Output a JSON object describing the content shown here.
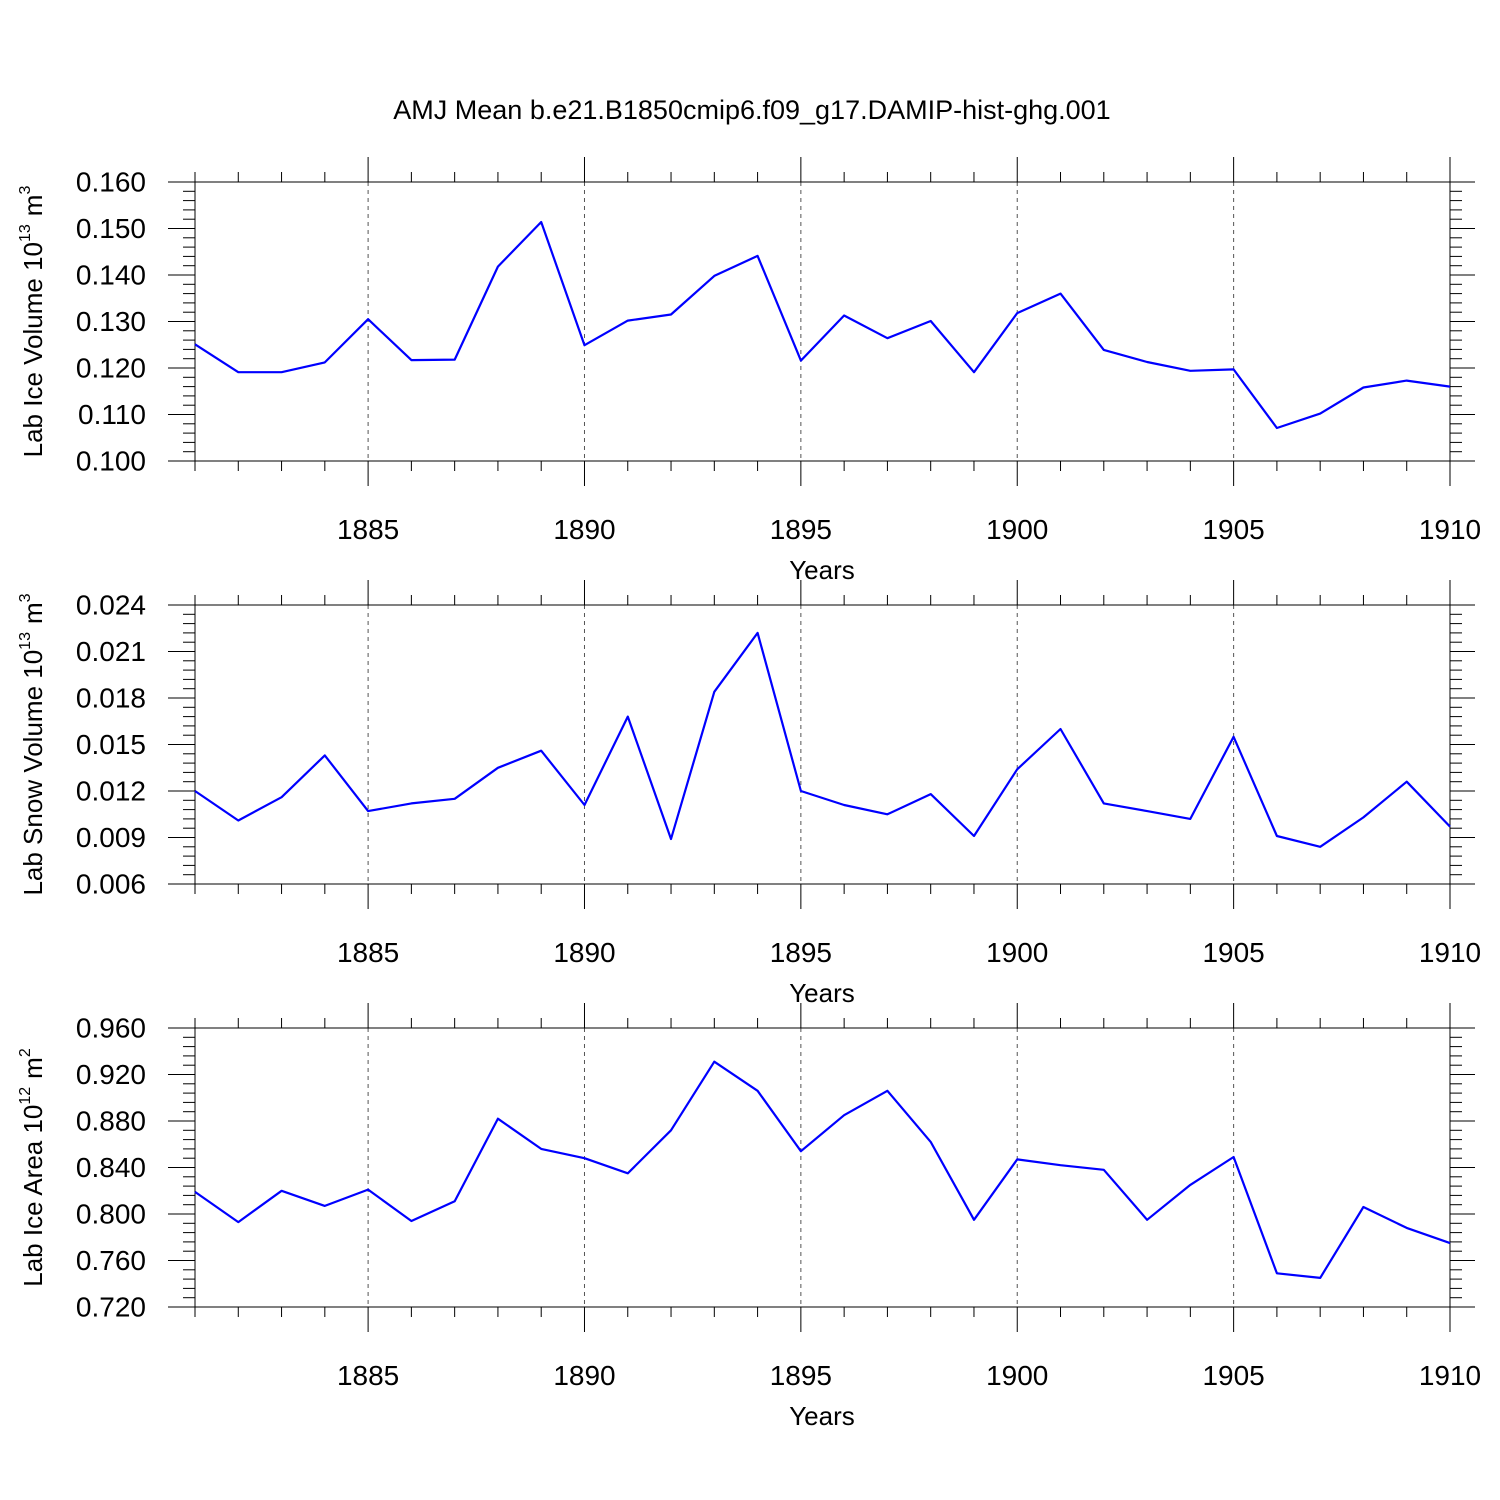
{
  "title": "AMJ Mean b.e21.B1850cmip6.f09_g17.DAMIP-hist-ghg.001",
  "colors": {
    "line": "#0000ff",
    "axis": "#000000",
    "grid": "#555555"
  },
  "chart_data": [
    {
      "type": "line",
      "ylabel_text": "Lab Ice Volume 10",
      "ylabel_exp": "13",
      "ylabel_unit": "m",
      "ylabel_unit_exp": "3",
      "xlabel": "Years",
      "xlim": [
        1881,
        1910
      ],
      "ylim": [
        0.1,
        0.16
      ],
      "yticks": [
        "0.100",
        "0.110",
        "0.120",
        "0.130",
        "0.140",
        "0.150",
        "0.160"
      ],
      "ytick_values": [
        0.1,
        0.11,
        0.12,
        0.13,
        0.14,
        0.15,
        0.16
      ],
      "xticks": [
        "1885",
        "1890",
        "1895",
        "1900",
        "1905",
        "1910"
      ],
      "xtick_values": [
        1885,
        1890,
        1895,
        1900,
        1905,
        1910
      ],
      "x": [
        1881,
        1882,
        1883,
        1884,
        1885,
        1886,
        1887,
        1888,
        1889,
        1890,
        1891,
        1892,
        1893,
        1894,
        1895,
        1896,
        1897,
        1898,
        1899,
        1900,
        1901,
        1902,
        1903,
        1904,
        1905,
        1906,
        1907,
        1908,
        1909,
        1910
      ],
      "series": [
        {
          "name": "Lab Ice Volume",
          "values": [
            0.1251,
            0.1191,
            0.1191,
            0.1212,
            0.1305,
            0.1217,
            0.1218,
            0.1418,
            0.1514,
            0.1249,
            0.1302,
            0.1315,
            0.1398,
            0.1441,
            0.1216,
            0.1313,
            0.1264,
            0.1301,
            0.1191,
            0.1318,
            0.136,
            0.1239,
            0.1213,
            0.1194,
            0.1197,
            0.1071,
            0.1102,
            0.1158,
            0.1173,
            0.116
          ]
        }
      ]
    },
    {
      "type": "line",
      "ylabel_text": "Lab Snow Volume 10",
      "ylabel_exp": "13",
      "ylabel_unit": "m",
      "ylabel_unit_exp": "3",
      "xlabel": "Years",
      "xlim": [
        1881,
        1910
      ],
      "ylim": [
        0.006,
        0.024
      ],
      "yticks": [
        "0.006",
        "0.009",
        "0.012",
        "0.015",
        "0.018",
        "0.021",
        "0.024"
      ],
      "ytick_values": [
        0.006,
        0.009,
        0.012,
        0.015,
        0.018,
        0.021,
        0.024
      ],
      "xticks": [
        "1885",
        "1890",
        "1895",
        "1900",
        "1905",
        "1910"
      ],
      "xtick_values": [
        1885,
        1890,
        1895,
        1900,
        1905,
        1910
      ],
      "x": [
        1881,
        1882,
        1883,
        1884,
        1885,
        1886,
        1887,
        1888,
        1889,
        1890,
        1891,
        1892,
        1893,
        1894,
        1895,
        1896,
        1897,
        1898,
        1899,
        1900,
        1901,
        1902,
        1903,
        1904,
        1905,
        1906,
        1907,
        1908,
        1909,
        1910
      ],
      "series": [
        {
          "name": "Lab Snow Volume",
          "values": [
            0.012,
            0.0101,
            0.0116,
            0.0143,
            0.0107,
            0.0112,
            0.0115,
            0.0135,
            0.0146,
            0.0111,
            0.0168,
            0.0089,
            0.0184,
            0.0222,
            0.012,
            0.0111,
            0.0105,
            0.0118,
            0.0091,
            0.0134,
            0.016,
            0.0112,
            0.0107,
            0.0102,
            0.0155,
            0.0091,
            0.0084,
            0.0103,
            0.0126,
            0.0097
          ]
        }
      ]
    },
    {
      "type": "line",
      "ylabel_text": "Lab Ice Area 10",
      "ylabel_exp": "12",
      "ylabel_unit": "m",
      "ylabel_unit_exp": "2",
      "xlabel": "Years",
      "xlim": [
        1881,
        1910
      ],
      "ylim": [
        0.72,
        0.96
      ],
      "yticks": [
        "0.720",
        "0.760",
        "0.800",
        "0.840",
        "0.880",
        "0.920",
        "0.960"
      ],
      "ytick_values": [
        0.72,
        0.76,
        0.8,
        0.84,
        0.88,
        0.92,
        0.96
      ],
      "xticks": [
        "1885",
        "1890",
        "1895",
        "1900",
        "1905",
        "1910"
      ],
      "xtick_values": [
        1885,
        1890,
        1895,
        1900,
        1905,
        1910
      ],
      "x": [
        1881,
        1882,
        1883,
        1884,
        1885,
        1886,
        1887,
        1888,
        1889,
        1890,
        1891,
        1892,
        1893,
        1894,
        1895,
        1896,
        1897,
        1898,
        1899,
        1900,
        1901,
        1902,
        1903,
        1904,
        1905,
        1906,
        1907,
        1908,
        1909,
        1910
      ],
      "series": [
        {
          "name": "Lab Ice Area",
          "values": [
            0.819,
            0.793,
            0.82,
            0.807,
            0.821,
            0.794,
            0.811,
            0.882,
            0.856,
            0.848,
            0.835,
            0.872,
            0.931,
            0.906,
            0.854,
            0.885,
            0.906,
            0.862,
            0.795,
            0.847,
            0.842,
            0.838,
            0.795,
            0.825,
            0.849,
            0.749,
            0.745,
            0.806,
            0.788,
            0.775
          ]
        }
      ]
    }
  ]
}
